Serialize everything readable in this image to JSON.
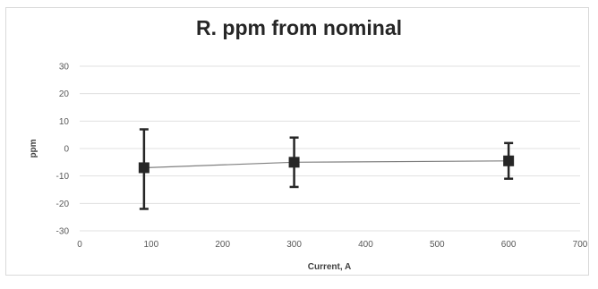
{
  "chart_data": {
    "type": "scatter",
    "title": "R. ppm from nominal",
    "xlabel": "Current, A",
    "ylabel": "ppm",
    "xlim": [
      0,
      700
    ],
    "ylim": [
      -30,
      30
    ],
    "x_ticks": [
      0,
      100,
      200,
      300,
      400,
      500,
      600,
      700
    ],
    "y_ticks": [
      -30,
      -20,
      -10,
      0,
      10,
      20,
      30
    ],
    "grid": true,
    "legend": "none",
    "series": [
      {
        "x": [
          90,
          300,
          600
        ],
        "y": [
          -7,
          -5,
          -4.5
        ],
        "y_err_plus": [
          14,
          9,
          6.5
        ],
        "y_err_minus": [
          15,
          9,
          6.5
        ],
        "marker": "square",
        "line": "connected"
      }
    ],
    "colors": {
      "marker": "#262626",
      "line": "#808080",
      "grid": "#e0e0e0"
    }
  }
}
